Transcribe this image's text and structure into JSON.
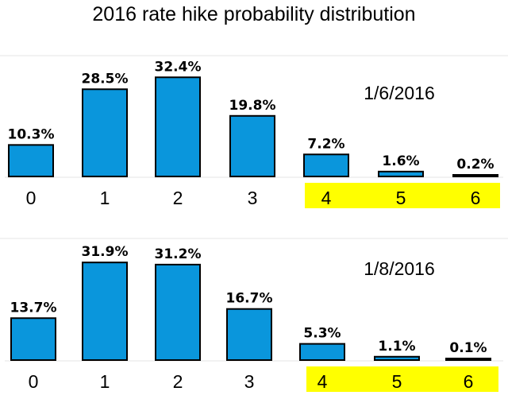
{
  "title": "2016 rate hike probability distribution",
  "colors": {
    "bar": "#0a96dc",
    "bar_outline": "#000000",
    "highlight": "#ffff00",
    "grid": "#e6e6e6"
  },
  "chart_data": [
    {
      "type": "bar",
      "date": "1/6/2016",
      "categories": [
        "0",
        "1",
        "2",
        "3",
        "4",
        "5",
        "6"
      ],
      "values": [
        10.3,
        28.5,
        32.4,
        19.8,
        7.2,
        1.6,
        0.2
      ],
      "labels": [
        "10.3%",
        "28.5%",
        "32.4%",
        "19.8%",
        "7.2%",
        "1.6%",
        "0.2%"
      ],
      "highlighted_categories": [
        "4",
        "5",
        "6"
      ],
      "ylim": [
        0,
        35
      ]
    },
    {
      "type": "bar",
      "date": "1/8/2016",
      "categories": [
        "0",
        "1",
        "2",
        "3",
        "4",
        "5",
        "6"
      ],
      "values": [
        13.7,
        31.9,
        31.2,
        16.7,
        5.3,
        1.1,
        0.1
      ],
      "labels": [
        "13.7%",
        "31.9%",
        "31.2%",
        "16.7%",
        "5.3%",
        "1.1%",
        "0.1%"
      ],
      "highlighted_categories": [
        "4",
        "5",
        "6"
      ],
      "ylim": [
        0,
        35
      ]
    }
  ]
}
